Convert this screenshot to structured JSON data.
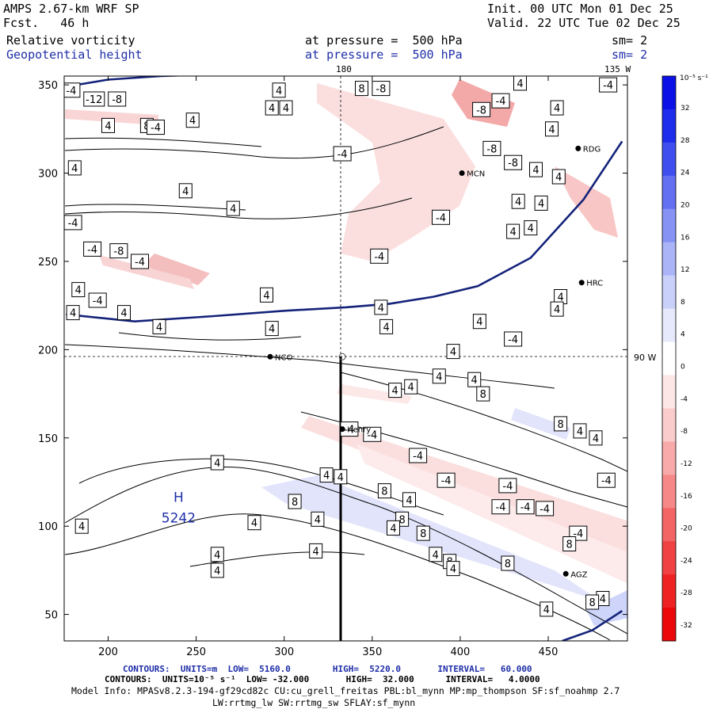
{
  "header": {
    "model": "AMPS 2.67-km WRF SP",
    "forecast": "Fcst.   46 h",
    "init": "Init. 00 UTC Mon 01 Dec 25",
    "valid": "Valid. 22 UTC Tue 02 Dec 25",
    "field1": "Relative vorticity",
    "field1_level": "at pressure =  500 hPa",
    "field1_sm": "sm= 2",
    "field2": "Geopotential height",
    "field2_level": "at pressure =  500 hPa",
    "field2_sm": "sm= 2",
    "lon_180": "180",
    "lon_135w": "135 W",
    "lon_90w": "90 W"
  },
  "colorbar": {
    "unit": "10⁻⁵ s⁻¹",
    "labels": [
      "32",
      "28",
      "24",
      "20",
      "16",
      "12",
      "8",
      "4",
      "0",
      "-4",
      "-8",
      "-12",
      "-16",
      "-20",
      "-24",
      "-28",
      "-32"
    ],
    "colors": [
      "#0a10e6",
      "#1e2ceb",
      "#3f4fef",
      "#6270f1",
      "#8793f4",
      "#aab4f7",
      "#c9d0fa",
      "#e6e9fc",
      "#ffffff",
      "#fde6e6",
      "#fbcccc",
      "#f8aaaa",
      "#f68888",
      "#f36565",
      "#f04242",
      "#ee2222",
      "#ec0808"
    ]
  },
  "stations": [
    {
      "id": "NCO",
      "name": "NCO"
    },
    {
      "id": "Henry",
      "name": "Henry"
    },
    {
      "id": "RDG",
      "name": "RDG"
    },
    {
      "id": "MCN",
      "name": "MCN"
    },
    {
      "id": "HRC",
      "name": "HRC"
    },
    {
      "id": "AGZ",
      "name": "AGZ"
    }
  ],
  "high_center": {
    "label": "H",
    "value": "5242"
  },
  "footer": {
    "line1": "CONTOURS:  UNITS=m  LOW=  5160.0        HIGH=  5220.0       INTERVAL=   60.000",
    "line2": "CONTOURS:  UNITS=10⁻⁵ s⁻¹  LOW= -32.000       HIGH=  32.000      INTERVAL=   4.0000",
    "line3": "Model Info: MPASv8.2.3-194-gf29cd82c CU:cu_grell_freitas PBL:bl_mynn MP:mp_thompson SF:sf_noahmp 2.7",
    "line4": "LW:rrtmg_lw SW:rrtmg_sw SFLAY:sf_mynn"
  },
  "chart_data": {
    "type": "heatmap",
    "title": "500 hPa Relative vorticity and Geopotential height",
    "xlabel": "",
    "ylabel": "",
    "xlim": [
      175,
      495
    ],
    "ylim": [
      35,
      355
    ],
    "x_ticks": [
      200,
      250,
      300,
      350,
      400,
      450
    ],
    "y_ticks": [
      50,
      100,
      150,
      200,
      250,
      300,
      350
    ],
    "geopotential_contours": [
      {
        "value": 5160,
        "points": [
          [
            176,
            220
          ],
          [
            215,
            216
          ],
          [
            260,
            219
          ],
          [
            300,
            222
          ],
          [
            335,
            224
          ],
          [
            360,
            226
          ],
          [
            385,
            230
          ],
          [
            410,
            236
          ],
          [
            440,
            252
          ],
          [
            470,
            285
          ],
          [
            492,
            318
          ]
        ]
      },
      {
        "value": 5220,
        "points": [
          [
            176,
            349
          ],
          [
            200,
            353
          ],
          [
            230,
            355
          ],
          [
            260,
            356
          ]
        ]
      },
      {
        "value": 5220,
        "points": [
          [
            458,
            35
          ],
          [
            475,
            41
          ],
          [
            492,
            52
          ]
        ]
      }
    ],
    "vorticity_contour_labels": [
      {
        "x": 179,
        "y": 347,
        "v": "-4"
      },
      {
        "x": 192,
        "y": 342,
        "v": "-12"
      },
      {
        "x": 205,
        "y": 342,
        "v": "-8"
      },
      {
        "x": 200,
        "y": 327,
        "v": "4"
      },
      {
        "x": 222,
        "y": 327,
        "v": "8"
      },
      {
        "x": 248,
        "y": 330,
        "v": "4"
      },
      {
        "x": 227,
        "y": 326,
        "v": "-4"
      },
      {
        "x": 181,
        "y": 303,
        "v": "4"
      },
      {
        "x": 244,
        "y": 290,
        "v": "4"
      },
      {
        "x": 271,
        "y": 280,
        "v": "4"
      },
      {
        "x": 180,
        "y": 272,
        "v": "-4"
      },
      {
        "x": 191,
        "y": 257,
        "v": "-4"
      },
      {
        "x": 206,
        "y": 256,
        "v": "-8"
      },
      {
        "x": 218,
        "y": 250,
        "v": "-4"
      },
      {
        "x": 183,
        "y": 234,
        "v": "4"
      },
      {
        "x": 194,
        "y": 228,
        "v": "-4"
      },
      {
        "x": 180,
        "y": 221,
        "v": "4"
      },
      {
        "x": 209,
        "y": 221,
        "v": "4"
      },
      {
        "x": 229,
        "y": 213,
        "v": "4"
      },
      {
        "x": 293,
        "y": 212,
        "v": "4"
      },
      {
        "x": 290,
        "y": 231,
        "v": "4"
      },
      {
        "x": 297,
        "y": 347,
        "v": "4"
      },
      {
        "x": 293,
        "y": 337,
        "v": "4"
      },
      {
        "x": 301,
        "y": 337,
        "v": "4"
      },
      {
        "x": 344,
        "y": 348,
        "v": "8"
      },
      {
        "x": 355,
        "y": 348,
        "v": "-8"
      },
      {
        "x": 333,
        "y": 311,
        "v": "-4"
      },
      {
        "x": 354,
        "y": 253,
        "v": "-4"
      },
      {
        "x": 355,
        "y": 224,
        "v": "4"
      },
      {
        "x": 358,
        "y": 213,
        "v": "4"
      },
      {
        "x": 389,
        "y": 275,
        "v": "-4"
      },
      {
        "x": 434,
        "y": 351,
        "v": "4"
      },
      {
        "x": 412,
        "y": 336,
        "v": "-8"
      },
      {
        "x": 423,
        "y": 341,
        "v": "-4"
      },
      {
        "x": 418,
        "y": 314,
        "v": "-8"
      },
      {
        "x": 430,
        "y": 306,
        "v": "-8"
      },
      {
        "x": 455,
        "y": 337,
        "v": "4"
      },
      {
        "x": 452,
        "y": 325,
        "v": "4"
      },
      {
        "x": 443,
        "y": 302,
        "v": "4"
      },
      {
        "x": 456,
        "y": 298,
        "v": "4"
      },
      {
        "x": 484,
        "y": 350,
        "v": "-4"
      },
      {
        "x": 433,
        "y": 284,
        "v": "4"
      },
      {
        "x": 430,
        "y": 267,
        "v": "4"
      },
      {
        "x": 440,
        "y": 269,
        "v": "4"
      },
      {
        "x": 446,
        "y": 283,
        "v": "4"
      },
      {
        "x": 457,
        "y": 230,
        "v": "4"
      },
      {
        "x": 455,
        "y": 223,
        "v": "4"
      },
      {
        "x": 411,
        "y": 216,
        "v": "4"
      },
      {
        "x": 430,
        "y": 206,
        "v": "-4"
      },
      {
        "x": 396,
        "y": 199,
        "v": "4"
      },
      {
        "x": 388,
        "y": 185,
        "v": "4"
      },
      {
        "x": 408,
        "y": 183,
        "v": "4"
      },
      {
        "x": 413,
        "y": 175,
        "v": "8"
      },
      {
        "x": 372,
        "y": 179,
        "v": "4"
      },
      {
        "x": 363,
        "y": 177,
        "v": "4"
      },
      {
        "x": 337,
        "y": 155,
        "v": "-4"
      },
      {
        "x": 350,
        "y": 152,
        "v": "-4"
      },
      {
        "x": 376,
        "y": 140,
        "v": "-4"
      },
      {
        "x": 392,
        "y": 126,
        "v": "-4"
      },
      {
        "x": 427,
        "y": 123,
        "v": "-4"
      },
      {
        "x": 423,
        "y": 111,
        "v": "-4"
      },
      {
        "x": 437,
        "y": 111,
        "v": "-4"
      },
      {
        "x": 448,
        "y": 110,
        "v": "-4"
      },
      {
        "x": 457,
        "y": 158,
        "v": "8"
      },
      {
        "x": 468,
        "y": 154,
        "v": "4"
      },
      {
        "x": 477,
        "y": 150,
        "v": "4"
      },
      {
        "x": 483,
        "y": 126,
        "v": "-4"
      },
      {
        "x": 467,
        "y": 96,
        "v": "-4"
      },
      {
        "x": 462,
        "y": 90,
        "v": "8"
      },
      {
        "x": 481,
        "y": 59,
        "v": "4"
      },
      {
        "x": 475,
        "y": 57,
        "v": "8"
      },
      {
        "x": 449,
        "y": 53,
        "v": "4"
      },
      {
        "x": 262,
        "y": 136,
        "v": "4"
      },
      {
        "x": 324,
        "y": 129,
        "v": "4"
      },
      {
        "x": 332,
        "y": 128,
        "v": "4"
      },
      {
        "x": 357,
        "y": 120,
        "v": "8"
      },
      {
        "x": 371,
        "y": 115,
        "v": "4"
      },
      {
        "x": 306,
        "y": 114,
        "v": "8"
      },
      {
        "x": 367,
        "y": 104,
        "v": "8"
      },
      {
        "x": 379,
        "y": 96,
        "v": "8"
      },
      {
        "x": 362,
        "y": 99,
        "v": "4"
      },
      {
        "x": 386,
        "y": 84,
        "v": "4"
      },
      {
        "x": 394,
        "y": 80,
        "v": "8"
      },
      {
        "x": 396,
        "y": 76,
        "v": "4"
      },
      {
        "x": 427,
        "y": 79,
        "v": "8"
      },
      {
        "x": 319,
        "y": 104,
        "v": "4"
      },
      {
        "x": 283,
        "y": 102,
        "v": "4"
      },
      {
        "x": 185,
        "y": 100,
        "v": "4"
      },
      {
        "x": 262,
        "y": 84,
        "v": "4"
      },
      {
        "x": 318,
        "y": 86,
        "v": "4"
      },
      {
        "x": 262,
        "y": 75,
        "v": "4"
      }
    ],
    "stations": [
      {
        "name": "NCO",
        "x": 292,
        "y": 196
      },
      {
        "name": "Henry",
        "x": 333,
        "y": 155
      },
      {
        "name": "RDG",
        "x": 467,
        "y": 314
      },
      {
        "name": "MCN",
        "x": 401,
        "y": 300
      },
      {
        "name": "HRC",
        "x": 469,
        "y": 238
      },
      {
        "name": "AGZ",
        "x": 460,
        "y": 73
      }
    ],
    "high": {
      "x": 240,
      "y": 107,
      "value": 5242
    },
    "pole_point": {
      "x": 333,
      "y": 196
    }
  }
}
